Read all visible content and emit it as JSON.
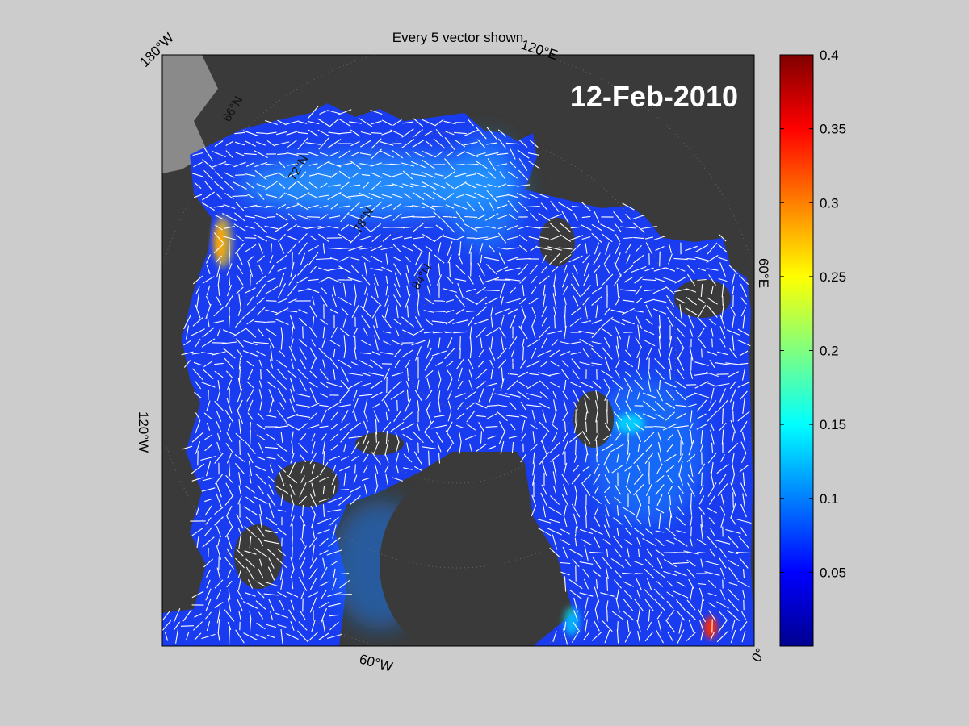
{
  "title": "Every 5 vector shown",
  "date": "12-Feb-2010",
  "longitude_labels": {
    "top_left": "180°W",
    "top_right": "120°E",
    "right": "60°E",
    "left": "120°W",
    "bottom": "60°W",
    "bottom_right": "0°"
  },
  "latitude_labels": [
    "66°N",
    "72°N",
    "78°N",
    "84°N"
  ],
  "colorbar": {
    "colormap": "jet",
    "min": 0,
    "max": 0.4,
    "ticks": [
      "0.4",
      "0.35",
      "0.3",
      "0.25",
      "0.2",
      "0.15",
      "0.1",
      "0.05"
    ]
  },
  "colors": {
    "background": "#cccccc",
    "land": "#3a3a3a",
    "land_far": "#8a8a8a",
    "ice_base": "#1a3cf0",
    "vector": "#ffffff"
  }
}
